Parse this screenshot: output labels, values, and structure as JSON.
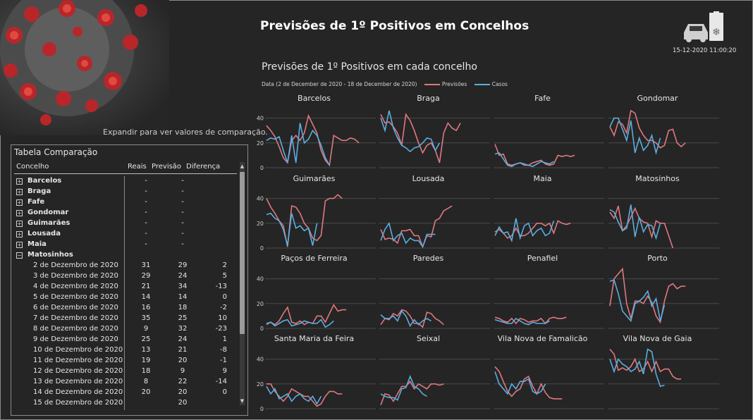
{
  "header": {
    "title": "Previsões de 1º Positivos em Concelhos",
    "timestamp": "15-12-2020 11:00:20",
    "expand_hint": "Expandir para ver valores de comparação."
  },
  "colors": {
    "previsoes": "#e0787f",
    "casos": "#5aaee0",
    "background": "#252525"
  },
  "table": {
    "title": "Tabela Comparação",
    "columns": {
      "concelho": "Concelho",
      "reais": "Reais",
      "previsao": "Previsão",
      "diferenca": "Diferença"
    },
    "groups": [
      {
        "name": "Barcelos",
        "reais": "-",
        "previsao": "-",
        "expanded": false
      },
      {
        "name": "Braga",
        "reais": "-",
        "previsao": "-",
        "expanded": false
      },
      {
        "name": "Fafe",
        "reais": "-",
        "previsao": "-",
        "expanded": false
      },
      {
        "name": "Gondomar",
        "reais": "-",
        "previsao": "-",
        "expanded": false
      },
      {
        "name": "Guimarães",
        "reais": "-",
        "previsao": "-",
        "expanded": false
      },
      {
        "name": "Lousada",
        "reais": "-",
        "previsao": "-",
        "expanded": false
      },
      {
        "name": "Maia",
        "reais": "-",
        "previsao": "-",
        "expanded": false
      },
      {
        "name": "Matosinhos",
        "reais": "",
        "previsao": "",
        "expanded": true
      }
    ],
    "rows": [
      {
        "date": "2 de Dezembro de 2020",
        "reais": "31",
        "previsao": "29",
        "diferenca": "2"
      },
      {
        "date": "3 de Dezembro de 2020",
        "reais": "29",
        "previsao": "24",
        "diferenca": "5"
      },
      {
        "date": "4 de Dezembro de 2020",
        "reais": "21",
        "previsao": "34",
        "diferenca": "-13"
      },
      {
        "date": "5 de Dezembro de 2020",
        "reais": "14",
        "previsao": "14",
        "diferenca": "0"
      },
      {
        "date": "6 de Dezembro de 2020",
        "reais": "16",
        "previsao": "18",
        "diferenca": "-2"
      },
      {
        "date": "7 de Dezembro de 2020",
        "reais": "35",
        "previsao": "25",
        "diferenca": "10"
      },
      {
        "date": "8 de Dezembro de 2020",
        "reais": "9",
        "previsao": "32",
        "diferenca": "-23"
      },
      {
        "date": "9 de Dezembro de 2020",
        "reais": "25",
        "previsao": "24",
        "diferenca": "1"
      },
      {
        "date": "10 de Dezembro de 2020",
        "reais": "13",
        "previsao": "21",
        "diferenca": "-8"
      },
      {
        "date": "11 de Dezembro de 2020",
        "reais": "19",
        "previsao": "20",
        "diferenca": "-1"
      },
      {
        "date": "12 de Dezembro de 2020",
        "reais": "18",
        "previsao": "9",
        "diferenca": "9"
      },
      {
        "date": "13 de Dezembro de 2020",
        "reais": "8",
        "previsao": "22",
        "diferenca": "-14"
      },
      {
        "date": "14 de Dezembro de 2020",
        "reais": "20",
        "previsao": "20",
        "diferenca": "0"
      },
      {
        "date": "15 de Dezembro de 2020",
        "reais": "",
        "previsao": "20",
        "diferenca": ""
      }
    ]
  },
  "chart_data": {
    "type": "line",
    "title": "Previsões de 1º Positivos em cada concelho",
    "legend_label": "Data (2 de December de 2020 - 18 de December de 2020)",
    "legend_position": "top-left",
    "series_names": [
      "Previsões",
      "Casos"
    ],
    "yticks": [
      0,
      20,
      40
    ],
    "ylim": [
      0,
      50
    ],
    "grid": true,
    "panels": [
      {
        "name": "Barcelos",
        "previsoes": [
          34,
          30,
          25,
          17,
          8,
          4,
          22,
          26,
          22,
          28,
          42,
          35,
          28,
          14,
          6,
          2,
          26,
          24,
          22,
          22,
          24,
          23,
          20
        ],
        "casos": [
          22,
          24,
          23,
          25,
          14,
          4,
          26,
          4,
          36,
          20,
          23,
          30,
          26,
          18,
          8,
          2
        ]
      },
      {
        "name": "Braga",
        "previsoes": [
          43,
          36,
          37,
          33,
          28,
          18,
          43,
          38,
          30,
          20,
          12,
          18,
          20,
          14,
          4,
          28,
          36,
          32,
          30,
          36
        ],
        "casos": [
          40,
          30,
          46,
          32,
          24,
          18,
          16,
          13,
          16,
          17,
          20,
          24,
          23,
          14,
          20
        ]
      },
      {
        "name": "Fafe",
        "previsoes": [
          19,
          10,
          11,
          3,
          2,
          3,
          4,
          2,
          2,
          4,
          5,
          6,
          3,
          2,
          3,
          10,
          9,
          10,
          9,
          10
        ],
        "casos": [
          11,
          12,
          7,
          2,
          1,
          3,
          4,
          3,
          2,
          1,
          3,
          5,
          4,
          3,
          5
        ]
      },
      {
        "name": "Gondomar",
        "previsoes": [
          33,
          26,
          37,
          35,
          28,
          46,
          44,
          32,
          26,
          22,
          22,
          20,
          16,
          18,
          30,
          31,
          20,
          17,
          20
        ],
        "casos": [
          33,
          40,
          40,
          31,
          22,
          38,
          12,
          24,
          14,
          18,
          26,
          12,
          24
        ]
      },
      {
        "name": "Guimarães",
        "previsoes": [
          40,
          33,
          28,
          22,
          18,
          1,
          34,
          33,
          28,
          20,
          16,
          8,
          6,
          10,
          38,
          40,
          40,
          43,
          40
        ],
        "casos": [
          27,
          28,
          24,
          22,
          15,
          2,
          28,
          16,
          18,
          14,
          16,
          2,
          20
        ]
      },
      {
        "name": "Lousada",
        "previsoes": [
          15,
          7,
          8,
          7,
          4,
          14,
          14,
          15,
          10,
          10,
          1,
          10,
          9,
          22,
          24,
          30,
          32,
          34
        ],
        "casos": [
          6,
          15,
          20,
          6,
          10,
          12,
          4,
          8,
          6,
          6,
          1,
          11,
          11,
          11
        ]
      },
      {
        "name": "Maia",
        "previsoes": [
          13,
          15,
          12,
          8,
          10,
          16,
          10,
          10,
          12,
          16,
          20,
          20,
          18,
          20,
          12,
          22,
          20,
          19,
          20
        ],
        "casos": [
          10,
          17,
          12,
          13,
          6,
          24,
          8,
          18,
          20,
          10,
          14,
          16,
          10,
          12,
          22
        ]
      },
      {
        "name": "Matosinhos",
        "previsoes": [
          29,
          24,
          34,
          14,
          18,
          25,
          32,
          24,
          21,
          20,
          9,
          22,
          20,
          20,
          10,
          0
        ],
        "casos": [
          31,
          29,
          21,
          14,
          16,
          35,
          9,
          25,
          13,
          19,
          18,
          8,
          20
        ]
      },
      {
        "name": "Paços de Ferreira",
        "previsoes": [
          3,
          5,
          3,
          6,
          12,
          17,
          5,
          4,
          6,
          3,
          5,
          4,
          10,
          10,
          5,
          12,
          19,
          14,
          15,
          15
        ],
        "casos": [
          4,
          5,
          2,
          4,
          6,
          7,
          2,
          3,
          4,
          6,
          5,
          4,
          4,
          7,
          1,
          3,
          6
        ]
      },
      {
        "name": "Paredes",
        "previsoes": [
          3,
          8,
          7,
          12,
          10,
          15,
          14,
          10,
          4,
          4,
          1,
          13,
          12,
          8,
          6,
          3
        ],
        "casos": [
          11,
          8,
          8,
          10,
          6,
          14,
          10,
          2,
          7,
          3,
          6,
          8,
          6
        ]
      },
      {
        "name": "Penafiel",
        "previsoes": [
          9,
          8,
          6,
          5,
          8,
          4,
          8,
          7,
          5,
          6,
          6,
          8,
          4,
          8,
          9,
          8,
          8,
          9
        ],
        "casos": [
          7,
          6,
          5,
          4,
          4,
          8,
          6,
          4,
          3,
          5,
          4,
          4,
          4,
          6
        ]
      },
      {
        "name": "Porto",
        "previsoes": [
          18,
          40,
          44,
          48,
          20,
          8,
          22,
          22,
          20,
          26,
          21,
          10,
          5,
          22,
          34,
          36,
          32,
          34,
          34
        ],
        "casos": [
          38,
          39,
          28,
          14,
          10,
          6,
          20,
          22,
          25,
          30,
          18,
          24,
          6,
          19
        ]
      },
      {
        "name": "Santa Maria da Feira",
        "previsoes": [
          20,
          20,
          14,
          10,
          6,
          10,
          16,
          14,
          12,
          10,
          10,
          6,
          2,
          4,
          10,
          14,
          14,
          12,
          12
        ],
        "casos": [
          18,
          12,
          16,
          8,
          10,
          12,
          6,
          10,
          12,
          8,
          6,
          10,
          4,
          10
        ]
      },
      {
        "name": "Seixal",
        "previsoes": [
          3,
          12,
          11,
          6,
          12,
          18,
          18,
          22,
          16,
          20,
          18,
          16,
          20,
          20,
          19,
          20
        ],
        "casos": [
          12,
          10,
          9,
          9,
          7,
          16,
          17,
          26,
          18,
          16,
          12,
          10
        ]
      },
      {
        "name": "Vila Nova de Famalicão",
        "previsoes": [
          34,
          30,
          22,
          14,
          10,
          14,
          16,
          24,
          26,
          18,
          12,
          20,
          13,
          9,
          8,
          8,
          8
        ],
        "casos": [
          30,
          20,
          16,
          12,
          20,
          16,
          22,
          22,
          24,
          14,
          12,
          14,
          20
        ]
      },
      {
        "name": "Vila Nova de Gaia",
        "previsoes": [
          48,
          44,
          31,
          33,
          31,
          34,
          40,
          30,
          32,
          38,
          30,
          38,
          30,
          32,
          32,
          26,
          24,
          24
        ],
        "casos": [
          40,
          30,
          40,
          36,
          34,
          30,
          32,
          38,
          28,
          48,
          46,
          28,
          18,
          19
        ]
      }
    ]
  }
}
